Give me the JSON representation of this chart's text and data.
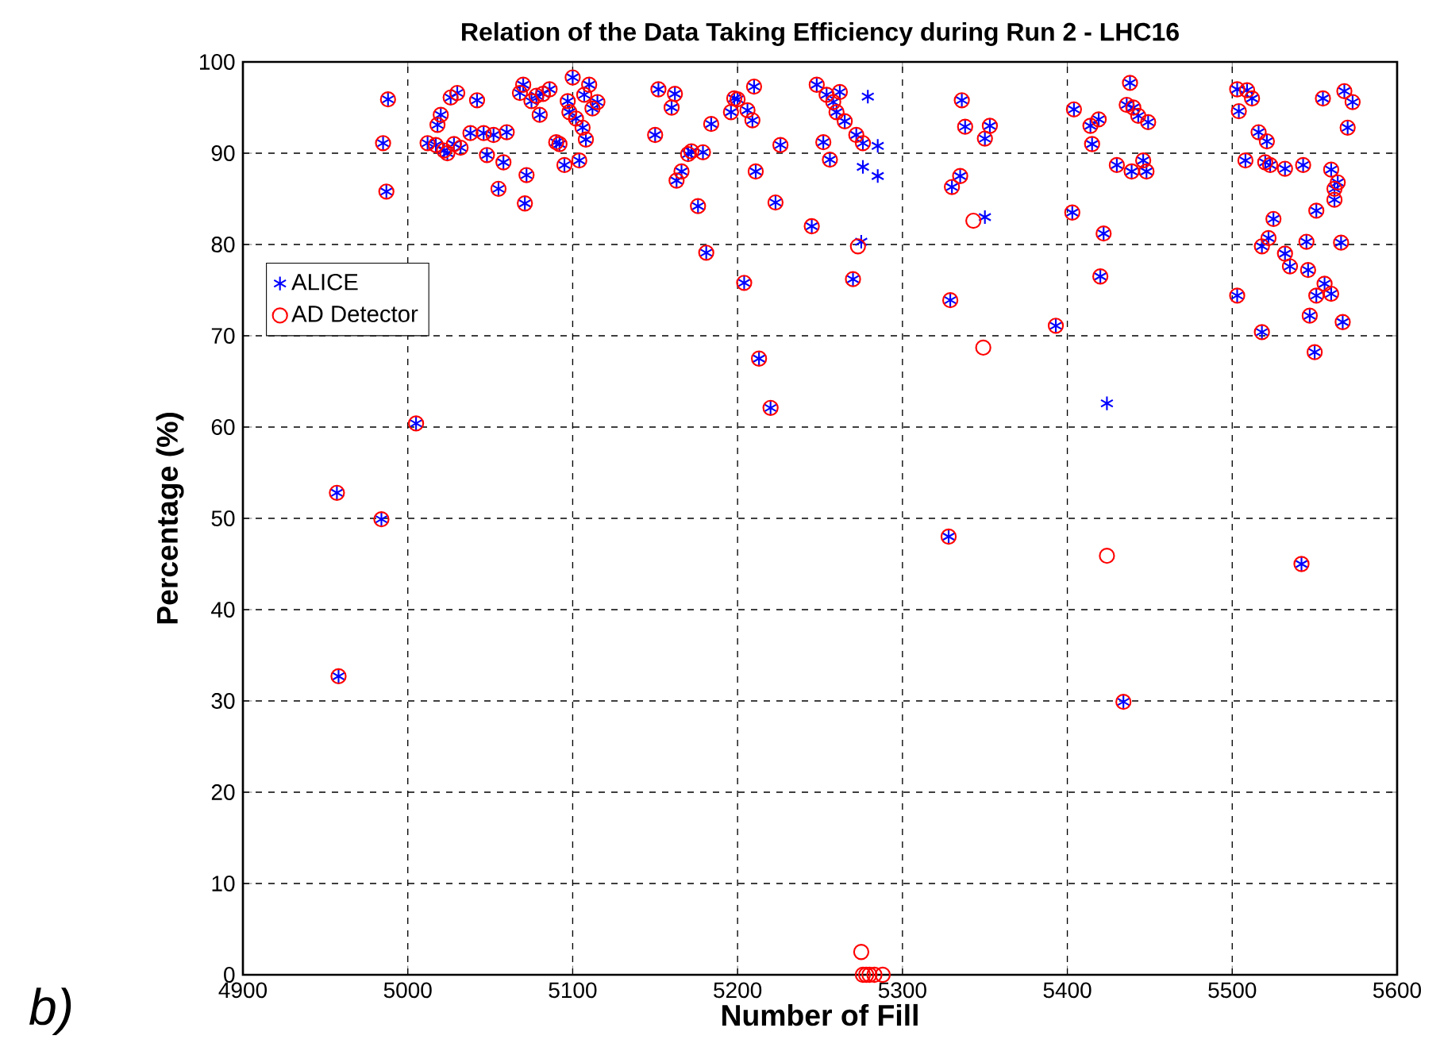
{
  "chart_data": {
    "type": "scatter",
    "title": "Relation of the Data Taking Efficiency during Run 2 - LHC16",
    "xlabel": "Number of Fill",
    "ylabel": "Percentage (%)",
    "xlim": [
      4900,
      5600
    ],
    "ylim": [
      0,
      100
    ],
    "xticks": [
      4900,
      5000,
      5100,
      5200,
      5300,
      5400,
      5500,
      5600
    ],
    "yticks": [
      0,
      10,
      20,
      30,
      40,
      50,
      60,
      70,
      80,
      90,
      100
    ],
    "grid": true,
    "legend": "top left",
    "annotations": [
      "*b)*"
    ],
    "series": [
      {
        "name": "ALICE",
        "color": "#0000ff",
        "marker": "cross",
        "x": [
          4957,
          4958,
          4984,
          4985,
          4987,
          4988,
          5005,
          5012,
          5017,
          5018,
          5020,
          5022,
          5024,
          5026,
          5028,
          5030,
          5032,
          5038,
          5042,
          5046,
          5048,
          5052,
          5055,
          5058,
          5060,
          5068,
          5070,
          5071,
          5072,
          5075,
          5078,
          5080,
          5082,
          5086,
          5090,
          5092,
          5095,
          5097,
          5098,
          5100,
          5102,
          5104,
          5106,
          5107,
          5108,
          5110,
          5112,
          5115,
          5150,
          5152,
          5160,
          5162,
          5163,
          5166,
          5170,
          5172,
          5176,
          5179,
          5181,
          5184,
          5196,
          5198,
          5200,
          5204,
          5206,
          5210,
          5211,
          5213,
          5209,
          5220,
          5223,
          5226,
          5245,
          5248,
          5252,
          5254,
          5256,
          5258,
          5260,
          5262,
          5265,
          5270,
          5272,
          5275,
          5276,
          5279,
          5285,
          5276,
          5285,
          5336,
          5338,
          5353,
          5350,
          5335,
          5330,
          5350,
          5329,
          5393,
          5424,
          5438,
          5404,
          5419,
          5414,
          5415,
          5436,
          5440,
          5443,
          5449,
          5430,
          5439,
          5446,
          5448,
          5403,
          5422,
          5420,
          5434,
          5328,
          5542,
          5503,
          5509,
          5512,
          5504,
          5555,
          5568,
          5573,
          5570,
          5516,
          5521,
          5508,
          5520,
          5523,
          5532,
          5543,
          5560,
          5564,
          5562,
          5562,
          5551,
          5525,
          5522,
          5518,
          5545,
          5566,
          5532,
          5535,
          5546,
          5503,
          5556,
          5551,
          5560,
          5547,
          5567,
          5518,
          5550
        ],
        "values": [
          52.8,
          32.7,
          49.9,
          91.1,
          85.8,
          95.9,
          60.4,
          91.1,
          90.9,
          93.1,
          94.2,
          90.3,
          90.0,
          96.1,
          91.0,
          96.6,
          90.6,
          92.2,
          95.8,
          92.2,
          89.8,
          92.0,
          86.1,
          89.0,
          92.3,
          96.6,
          97.5,
          84.5,
          87.6,
          95.7,
          96.3,
          94.2,
          96.5,
          97.0,
          91.2,
          91.0,
          88.7,
          95.7,
          94.5,
          98.3,
          93.8,
          89.2,
          92.8,
          96.4,
          91.5,
          97.5,
          94.9,
          95.6,
          92.0,
          97.0,
          95.0,
          96.5,
          87.0,
          88.0,
          89.9,
          90.2,
          84.2,
          90.1,
          79.1,
          93.2,
          94.5,
          96.0,
          95.9,
          75.8,
          94.7,
          97.3,
          88.0,
          67.5,
          93.6,
          62.1,
          84.6,
          90.9,
          82.0,
          97.5,
          91.2,
          96.4,
          89.3,
          95.6,
          94.5,
          96.7,
          93.5,
          76.2,
          92.0,
          80.3,
          91.1,
          96.2,
          90.8,
          88.5,
          87.5,
          95.8,
          92.9,
          93.0,
          91.6,
          87.5,
          86.3,
          83.0,
          73.9,
          71.1,
          62.6,
          97.7,
          94.8,
          93.7,
          93.0,
          91.0,
          95.3,
          95.0,
          94.1,
          93.4,
          88.7,
          88.0,
          89.2,
          88.0,
          83.5,
          81.2,
          76.5,
          29.9,
          48.0,
          45.0,
          97.0,
          96.9,
          96.0,
          94.6,
          96.0,
          96.8,
          95.6,
          92.8,
          92.3,
          91.3,
          89.2,
          89.0,
          88.7,
          88.3,
          88.7,
          88.2,
          86.8,
          86.1,
          84.9,
          83.7,
          82.8,
          80.7,
          79.8,
          80.3,
          80.2,
          79.0,
          77.6,
          77.2,
          74.4,
          75.7,
          74.4,
          74.6,
          72.2,
          71.5,
          70.4,
          68.2
        ]
      },
      {
        "name": "AD Detector",
        "color": "#ff0000",
        "marker": "circle",
        "x": [
          4957,
          4958,
          4984,
          4985,
          4987,
          4988,
          5005,
          5012,
          5017,
          5018,
          5020,
          5022,
          5024,
          5026,
          5028,
          5030,
          5032,
          5038,
          5042,
          5046,
          5048,
          5052,
          5055,
          5058,
          5060,
          5068,
          5070,
          5071,
          5072,
          5075,
          5078,
          5080,
          5082,
          5086,
          5090,
          5092,
          5095,
          5097,
          5098,
          5100,
          5102,
          5104,
          5106,
          5107,
          5108,
          5110,
          5112,
          5115,
          5150,
          5152,
          5160,
          5162,
          5163,
          5166,
          5170,
          5172,
          5176,
          5179,
          5181,
          5184,
          5196,
          5198,
          5200,
          5204,
          5206,
          5210,
          5211,
          5213,
          5209,
          5220,
          5223,
          5226,
          5245,
          5248,
          5252,
          5254,
          5256,
          5258,
          5260,
          5262,
          5265,
          5270,
          5272,
          5273,
          5276,
          5275,
          5276,
          5278,
          5280,
          5283,
          5288,
          5336,
          5338,
          5353,
          5350,
          5335,
          5330,
          5343,
          5329,
          5393,
          5349,
          5438,
          5404,
          5419,
          5414,
          5415,
          5436,
          5440,
          5443,
          5449,
          5430,
          5439,
          5446,
          5448,
          5403,
          5422,
          5420,
          5434,
          5424,
          5328,
          5542,
          5503,
          5509,
          5512,
          5504,
          5555,
          5568,
          5573,
          5570,
          5516,
          5521,
          5508,
          5520,
          5523,
          5532,
          5543,
          5560,
          5564,
          5562,
          5562,
          5551,
          5525,
          5522,
          5518,
          5545,
          5566,
          5532,
          5535,
          5546,
          5503,
          5556,
          5551,
          5560,
          5547,
          5567,
          5518,
          5550
        ],
        "values": [
          52.8,
          32.7,
          49.9,
          91.1,
          85.8,
          95.9,
          60.4,
          91.1,
          90.9,
          93.1,
          94.2,
          90.3,
          90.0,
          96.1,
          91.0,
          96.6,
          90.6,
          92.2,
          95.8,
          92.2,
          89.8,
          92.0,
          86.1,
          89.0,
          92.3,
          96.6,
          97.5,
          84.5,
          87.6,
          95.7,
          96.3,
          94.2,
          96.5,
          97.0,
          91.2,
          91.0,
          88.7,
          95.7,
          94.5,
          98.3,
          93.8,
          89.2,
          92.8,
          96.4,
          91.5,
          97.5,
          94.9,
          95.6,
          92.0,
          97.0,
          95.0,
          96.5,
          87.0,
          88.0,
          89.9,
          90.2,
          84.2,
          90.1,
          79.1,
          93.2,
          94.5,
          96.0,
          95.9,
          75.8,
          94.7,
          97.3,
          88.0,
          67.5,
          93.6,
          62.1,
          84.6,
          90.9,
          82.0,
          97.5,
          91.2,
          96.4,
          89.3,
          95.6,
          94.5,
          96.7,
          93.5,
          76.2,
          92.0,
          79.8,
          91.1,
          2.5,
          0,
          0,
          0,
          0,
          0,
          95.8,
          92.9,
          93.0,
          91.6,
          87.5,
          86.3,
          82.6,
          73.9,
          71.1,
          68.7,
          97.7,
          94.8,
          93.7,
          93.0,
          91.0,
          95.3,
          95.0,
          94.1,
          93.4,
          88.7,
          88.0,
          89.2,
          88.0,
          83.5,
          81.2,
          76.5,
          29.9,
          45.9,
          48.0,
          45.0,
          97.0,
          96.9,
          96.0,
          94.6,
          96.0,
          96.8,
          95.6,
          92.8,
          92.3,
          91.3,
          89.2,
          89.0,
          88.7,
          88.3,
          88.7,
          88.2,
          86.8,
          86.1,
          84.9,
          83.7,
          82.8,
          80.7,
          79.8,
          80.3,
          80.2,
          79.0,
          77.6,
          77.2,
          74.4,
          75.7,
          74.4,
          74.6,
          72.2,
          71.5,
          70.4,
          68.2
        ]
      }
    ]
  }
}
